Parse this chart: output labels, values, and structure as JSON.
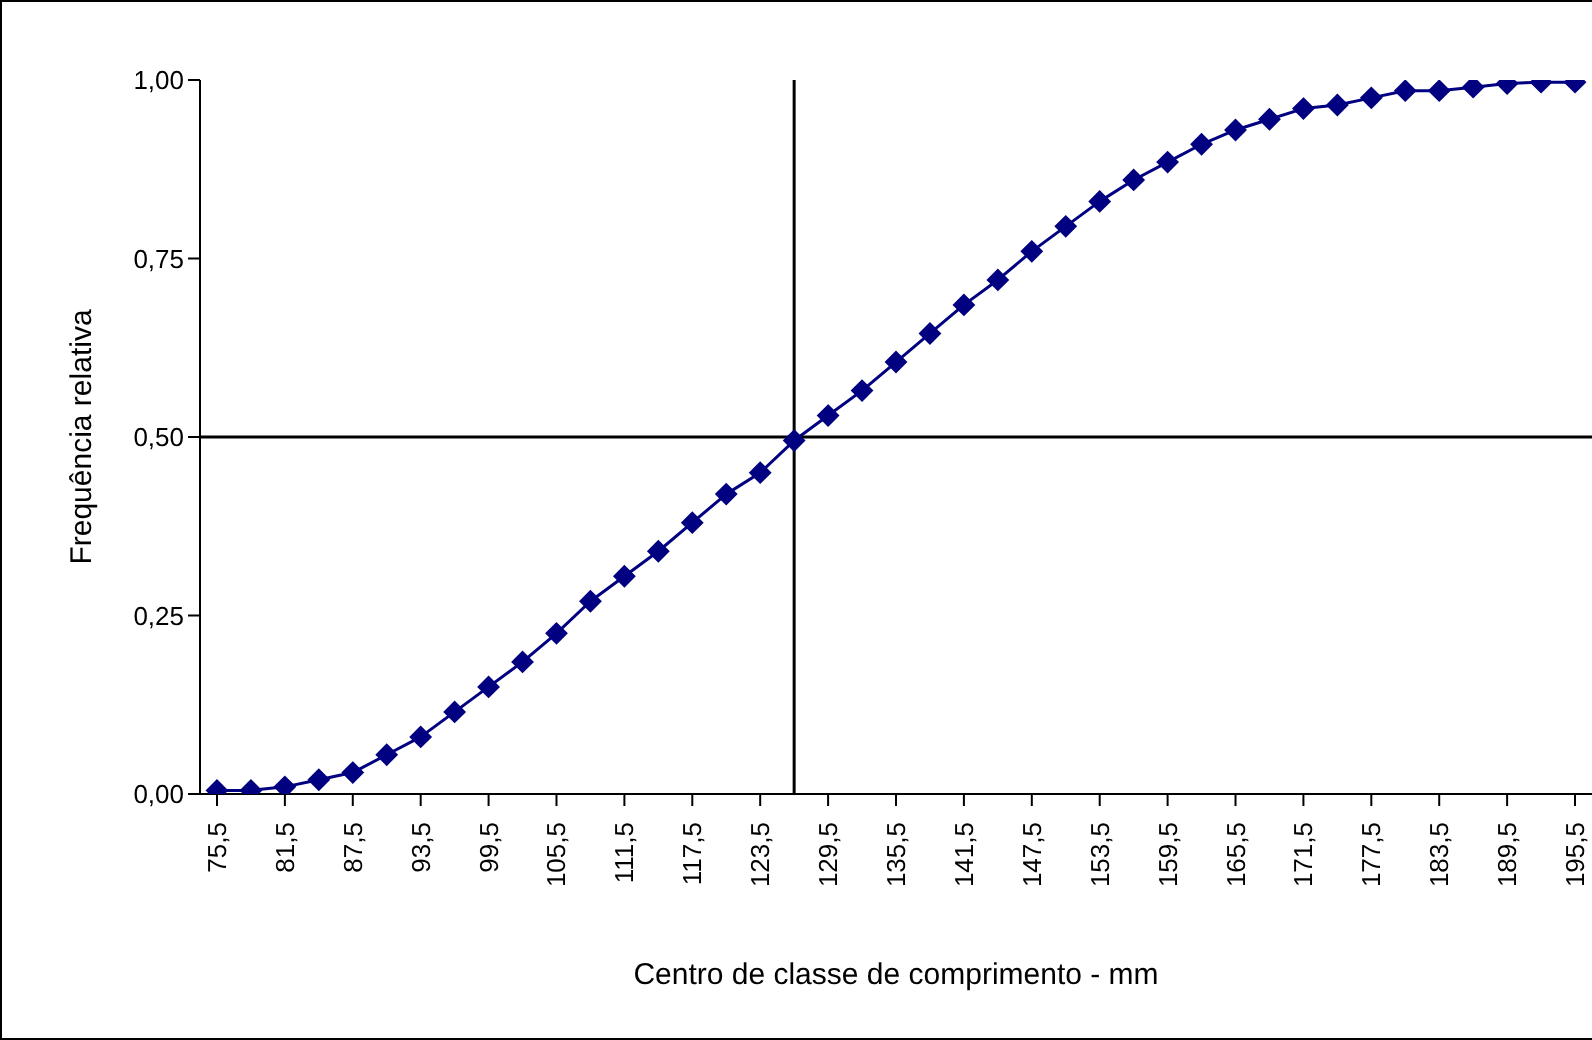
{
  "chart_data": {
    "type": "line",
    "xlabel": "Centro de classe de comprimento - mm",
    "ylabel": "Frequência relativa",
    "x": [
      75.5,
      78.5,
      81.5,
      84.5,
      87.5,
      90.5,
      93.5,
      96.5,
      99.5,
      102.5,
      105.5,
      108.5,
      111.5,
      114.5,
      117.5,
      120.5,
      123.5,
      126.5,
      129.5,
      132.5,
      135.5,
      138.5,
      141.5,
      144.5,
      147.5,
      150.5,
      153.5,
      156.5,
      159.5,
      162.5,
      165.5,
      168.5,
      171.5,
      174.5,
      177.5,
      180.5,
      183.5,
      186.5,
      189.5,
      192.5,
      195.5
    ],
    "series": [
      {
        "color": "#000080",
        "values": [
          0.005,
          0.005,
          0.01,
          0.02,
          0.03,
          0.055,
          0.08,
          0.115,
          0.15,
          0.185,
          0.225,
          0.27,
          0.305,
          0.34,
          0.38,
          0.42,
          0.45,
          0.495,
          0.53,
          0.565,
          0.605,
          0.645,
          0.685,
          0.72,
          0.76,
          0.795,
          0.83,
          0.86,
          0.885,
          0.91,
          0.93,
          0.945,
          0.96,
          0.965,
          0.975,
          0.985,
          0.985,
          0.99,
          0.995,
          0.997,
          0.997
        ]
      }
    ],
    "xlim": [
      74,
      197
    ],
    "xticks": [
      {
        "value": 75.5,
        "label": "75,5"
      },
      {
        "value": 81.5,
        "label": "81,5"
      },
      {
        "value": 87.5,
        "label": "87,5"
      },
      {
        "value": 93.5,
        "label": "93,5"
      },
      {
        "value": 99.5,
        "label": "99,5"
      },
      {
        "value": 105.5,
        "label": "105,5"
      },
      {
        "value": 111.5,
        "label": "111,5"
      },
      {
        "value": 117.5,
        "label": "117,5"
      },
      {
        "value": 123.5,
        "label": "123,5"
      },
      {
        "value": 129.5,
        "label": "129,5"
      },
      {
        "value": 135.5,
        "label": "135,5"
      },
      {
        "value": 141.5,
        "label": "141,5"
      },
      {
        "value": 147.5,
        "label": "147,5"
      },
      {
        "value": 153.5,
        "label": "153,5"
      },
      {
        "value": 159.5,
        "label": "159,5"
      },
      {
        "value": 165.5,
        "label": "165,5"
      },
      {
        "value": 171.5,
        "label": "171,5"
      },
      {
        "value": 177.5,
        "label": "177,5"
      },
      {
        "value": 183.5,
        "label": "183,5"
      },
      {
        "value": 189.5,
        "label": "189,5"
      },
      {
        "value": 195.5,
        "label": "195,5"
      }
    ],
    "ylim": [
      0,
      1
    ],
    "yticks": [
      {
        "value": 0,
        "label": "0,00"
      },
      {
        "value": 0.25,
        "label": "0,25"
      },
      {
        "value": 0.5,
        "label": "0,50"
      },
      {
        "value": 0.75,
        "label": "0,75"
      },
      {
        "value": 1,
        "label": "1,00"
      }
    ],
    "ref_lines": [
      {
        "axis": "x",
        "value": 126.5,
        "color": "#000000"
      },
      {
        "axis": "y",
        "value": 0.5,
        "color": "#000000"
      }
    ],
    "marker": "diamond",
    "line_style": "solid",
    "grid": false,
    "legend": false
  }
}
